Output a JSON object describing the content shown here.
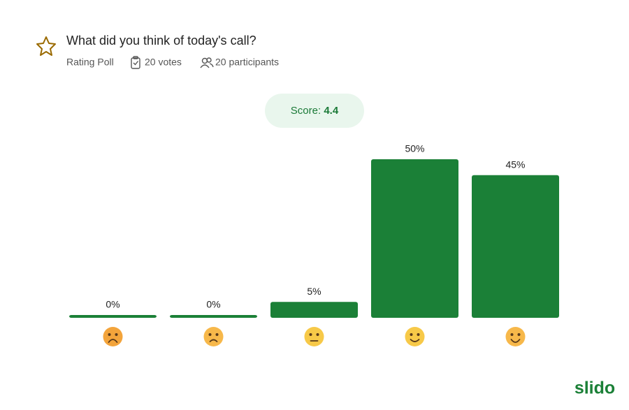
{
  "header": {
    "title": "What did you think of today's call?",
    "poll_type": "Rating Poll",
    "votes": "20 votes",
    "participants": "20 participants",
    "score_label": "Score:",
    "score": "4.4",
    "brand": "slido"
  },
  "chart_data": {
    "type": "bar",
    "categories": [
      null,
      null,
      null,
      null,
      null
    ],
    "values": [
      0,
      0,
      5,
      50,
      45
    ],
    "value_labels": [
      "0%",
      "0%",
      "5%",
      "50%",
      "45%"
    ],
    "color": "#1b8037"
  }
}
